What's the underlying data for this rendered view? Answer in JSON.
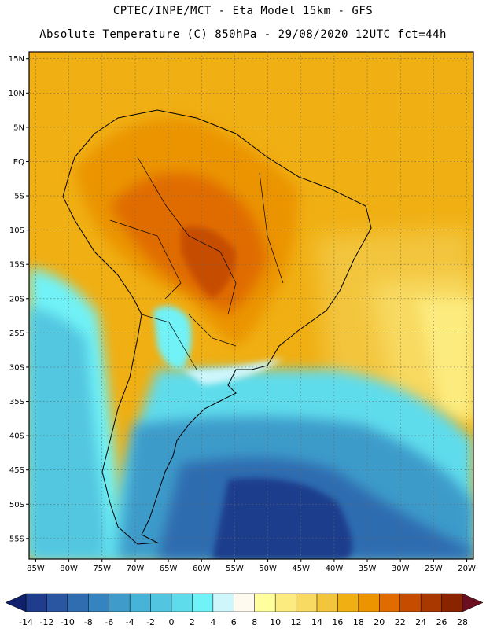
{
  "header": {
    "line1": "CPTEC/INPE/MCT -  Eta Model 15km - GFS",
    "line2": "Absolute Temperature (C) 850hPa - 29/08/2020 12UTC fct=44h"
  },
  "map": {
    "lat_labels": [
      "15N",
      "10N",
      "5N",
      "EQ",
      "5S",
      "10S",
      "15S",
      "20S",
      "25S",
      "30S",
      "35S",
      "40S",
      "45S",
      "50S",
      "55S"
    ],
    "lon_labels": [
      "85W",
      "80W",
      "75W",
      "70W",
      "65W",
      "60W",
      "55W",
      "50W",
      "45W",
      "40W",
      "35W",
      "30W",
      "25W",
      "20W"
    ],
    "lon_extent": [
      -86,
      -19
    ],
    "lat_extent": [
      16,
      -58
    ]
  },
  "colorbar": {
    "labels": [
      "-14",
      "-12",
      "-10",
      "-8",
      "-6",
      "-4",
      "-2",
      "0",
      "2",
      "4",
      "6",
      "8",
      "10",
      "12",
      "14",
      "16",
      "18",
      "20",
      "22",
      "24",
      "26",
      "28"
    ],
    "colors": [
      "#1f3d8c",
      "#2a55a0",
      "#2f6cb0",
      "#3584bf",
      "#3e9bca",
      "#47b3d6",
      "#52c6e0",
      "#5fdcec",
      "#71f2f7",
      "#cef6fb",
      "#fffaf0",
      "#ffff9e",
      "#fceb7e",
      "#f8da62",
      "#f3c53d",
      "#f0af12",
      "#eb9400",
      "#e06c00",
      "#c64d00",
      "#a83700",
      "#8a2300"
    ],
    "low_arrow_color": "#10206a",
    "high_arrow_color": "#6b0f20"
  }
}
